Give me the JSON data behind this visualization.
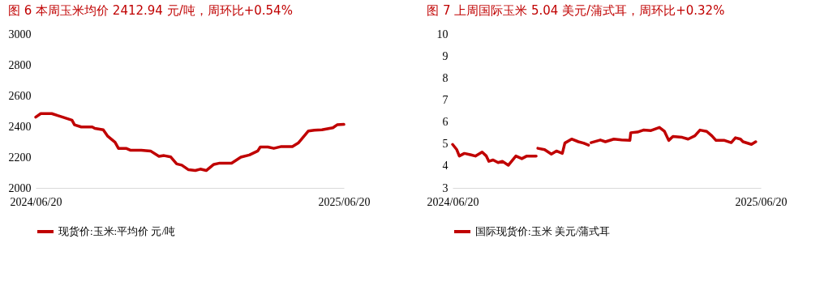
{
  "chart_data": [
    {
      "type": "line",
      "title": "图 6   本周玉米均价 2412.94 元/吨，周环比+0.54%",
      "x": [
        "2024-06-20",
        "2024-06-26",
        "2024-07-09",
        "2024-07-16",
        "2024-07-22",
        "2024-08-02",
        "2024-08-05",
        "2024-08-13",
        "2024-08-26",
        "2024-08-29",
        "2024-09-08",
        "2024-09-13",
        "2024-09-22",
        "2024-09-26",
        "2024-10-05",
        "2024-10-10",
        "2024-10-23",
        "2024-11-03",
        "2024-11-13",
        "2024-11-19",
        "2024-11-27",
        "2024-12-04",
        "2024-12-10",
        "2024-12-18",
        "2024-12-26",
        "2025-01-01",
        "2025-01-08",
        "2025-01-17",
        "2025-01-24",
        "2025-02-07",
        "2025-02-18",
        "2025-02-28",
        "2025-03-10",
        "2025-03-13",
        "2025-03-22",
        "2025-03-29",
        "2025-04-07",
        "2025-04-20",
        "2025-04-27",
        "2025-05-09",
        "2025-05-16",
        "2025-05-25",
        "2025-06-07",
        "2025-06-12",
        "2025-06-20"
      ],
      "series": [
        {
          "name": "现货价:玉米:平均价 元/吨",
          "color": "#c00000",
          "values": [
            2460,
            2483,
            2483,
            2470,
            2460,
            2440,
            2410,
            2396,
            2396,
            2387,
            2378,
            2338,
            2297,
            2257,
            2257,
            2245,
            2245,
            2240,
            2205,
            2210,
            2201,
            2156,
            2148,
            2118,
            2113,
            2122,
            2113,
            2153,
            2161,
            2161,
            2200,
            2214,
            2240,
            2266,
            2266,
            2257,
            2269,
            2269,
            2292,
            2370,
            2375,
            2378,
            2391,
            2410,
            2413
          ]
        }
      ],
      "xlim": [
        "2024-06-20",
        "2025-06-20"
      ],
      "xticks": [
        {
          "value": "2024-06-20",
          "label": "2024/06/20"
        },
        {
          "value": "2025-06-20",
          "label": "2025/06/20"
        }
      ],
      "ylim": [
        2000,
        3000
      ],
      "yticks": [
        2000,
        2200,
        2400,
        2600,
        2800,
        3000
      ],
      "legend": "bottom"
    },
    {
      "type": "line",
      "title": "图 7 上周国际玉米 5.04 美元/蒲式耳，周环比+0.32%",
      "x": [
        "2024-06-20",
        "2024-06-25",
        "2024-06-28",
        "2024-07-04",
        "2024-07-11",
        "2024-07-17",
        "2024-07-25",
        "2024-07-30",
        "2024-08-02",
        "2024-08-07",
        "2024-08-13",
        "2024-08-18",
        "2024-08-25",
        "2024-09-03",
        "2024-09-10",
        "2024-09-16",
        "2024-09-27",
        "2024-09-28",
        "2024-09-29",
        "2024-10-07",
        "2024-10-15",
        "2024-10-21",
        "2024-10-28",
        "2024-10-31",
        "2024-11-08",
        "2024-11-16",
        "2024-11-22",
        "2024-11-28",
        "2024-11-30",
        "2024-12-01",
        "2024-12-12",
        "2024-12-18",
        "2024-12-28",
        "2025-01-06",
        "2025-01-16",
        "2025-01-17",
        "2025-01-25",
        "2025-02-01",
        "2025-02-10",
        "2025-02-20",
        "2025-02-26",
        "2025-03-03",
        "2025-03-08",
        "2025-03-19",
        "2025-03-26",
        "2025-04-03",
        "2025-04-09",
        "2025-04-17",
        "2025-04-23",
        "2025-04-28",
        "2025-05-08",
        "2025-05-16",
        "2025-05-21",
        "2025-05-27",
        "2025-05-30",
        "2025-06-09",
        "2025-06-14"
      ],
      "series": [
        {
          "name": "国际现货价:玉米 美元/蒲式耳",
          "color": "#c00000",
          "values": [
            4.98,
            4.74,
            4.45,
            4.57,
            4.51,
            4.45,
            4.63,
            4.45,
            4.21,
            4.27,
            4.15,
            4.21,
            4.03,
            4.45,
            4.33,
            4.45,
            4.45,
            null,
            4.8,
            4.74,
            4.54,
            4.68,
            4.57,
            5.04,
            5.22,
            5.1,
            5.04,
            4.95,
            null,
            5.06,
            5.18,
            5.1,
            5.22,
            5.18,
            5.16,
            5.51,
            5.54,
            5.63,
            5.61,
            5.75,
            5.57,
            5.16,
            5.34,
            5.3,
            5.22,
            5.37,
            5.63,
            5.57,
            5.37,
            5.16,
            5.16,
            5.06,
            5.28,
            5.22,
            5.1,
            4.98,
            5.1
          ]
        }
      ],
      "xlim": [
        "2024-06-20",
        "2025-06-20"
      ],
      "xticks": [
        {
          "value": "2024-06-20",
          "label": "2024/06/20"
        },
        {
          "value": "2025-06-20",
          "label": "2025/06/20"
        }
      ],
      "ylim": [
        3,
        10
      ],
      "yticks": [
        3,
        4,
        5,
        6,
        7,
        8,
        9,
        10
      ],
      "legend": "bottom"
    }
  ]
}
